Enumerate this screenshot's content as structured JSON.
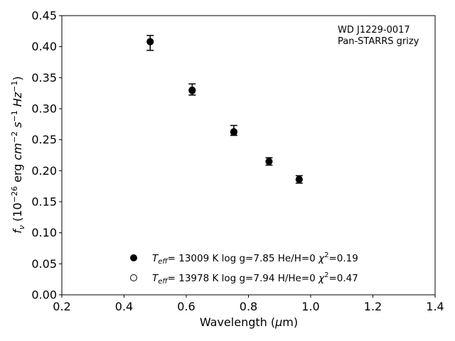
{
  "chart_data": {
    "type": "scatter",
    "xlabel": "Wavelength (μm)",
    "ylabel": "f_ν (10^-26 erg cm^-2 s^-1 Hz^-1)",
    "xlim": [
      0.2,
      1.4
    ],
    "ylim": [
      0.0,
      0.45
    ],
    "xticks": [
      "0.2",
      "0.4",
      "0.6",
      "0.8",
      "1.0",
      "1.2",
      "1.4"
    ],
    "yticks": [
      "0.00",
      "0.05",
      "0.10",
      "0.15",
      "0.20",
      "0.25",
      "0.30",
      "0.35",
      "0.40",
      "0.45"
    ],
    "annotation": [
      "WD J1229-0017",
      "Pan-STARRS grizy"
    ],
    "grid": false,
    "legend_position": "bottom-center",
    "observed": {
      "x": [
        0.484,
        0.619,
        0.753,
        0.866,
        0.963
      ],
      "y": [
        0.406,
        0.331,
        0.265,
        0.215,
        0.186
      ],
      "yerr": [
        0.012,
        0.009,
        0.008,
        0.006,
        0.006
      ]
    },
    "series": [
      {
        "name": "T_eff= 13009 K  log g=7.85  He/H=0  χ²=0.19",
        "marker": "filled-circle",
        "x": [
          0.484,
          0.619,
          0.753,
          0.866,
          0.963
        ],
        "y": [
          0.408,
          0.329,
          0.262,
          0.215,
          0.186
        ]
      },
      {
        "name": "T_eff= 13978 K  log g=7.94  H/He=0  χ²=0.47",
        "marker": "open-circle",
        "x": [
          0.484,
          0.619,
          0.753,
          0.866,
          0.963
        ],
        "y": [
          0.408,
          0.33,
          0.263,
          0.215,
          0.186
        ]
      }
    ]
  },
  "legend": [
    {
      "teff_label": "T",
      "teff_sub": "eff",
      "rest": "= 13009 K  log g=7.85  He/H=0  ",
      "chi": "χ",
      "chi_sup": "2",
      "chi_val": "=0.19"
    },
    {
      "teff_label": "T",
      "teff_sub": "eff",
      "rest": "= 13978 K  log g=7.94  H/He=0  ",
      "chi": "χ",
      "chi_sup": "2",
      "chi_val": "=0.47"
    }
  ],
  "ylabel_parts": {
    "f": "f",
    "nu": "ν",
    "open": " (10",
    "exp1": "−26",
    "erg": " erg ",
    "cm": "cm",
    "exp2": "−2",
    "s": " s",
    "exp3": "−1",
    "hz": " Hz",
    "exp4": "−1",
    "close": ")"
  },
  "xlabel_parts": {
    "pre": "Wavelength (",
    "mu": "μ",
    "post": "m)"
  },
  "colors": {
    "ink": "#000000",
    "background": "#ffffff"
  }
}
